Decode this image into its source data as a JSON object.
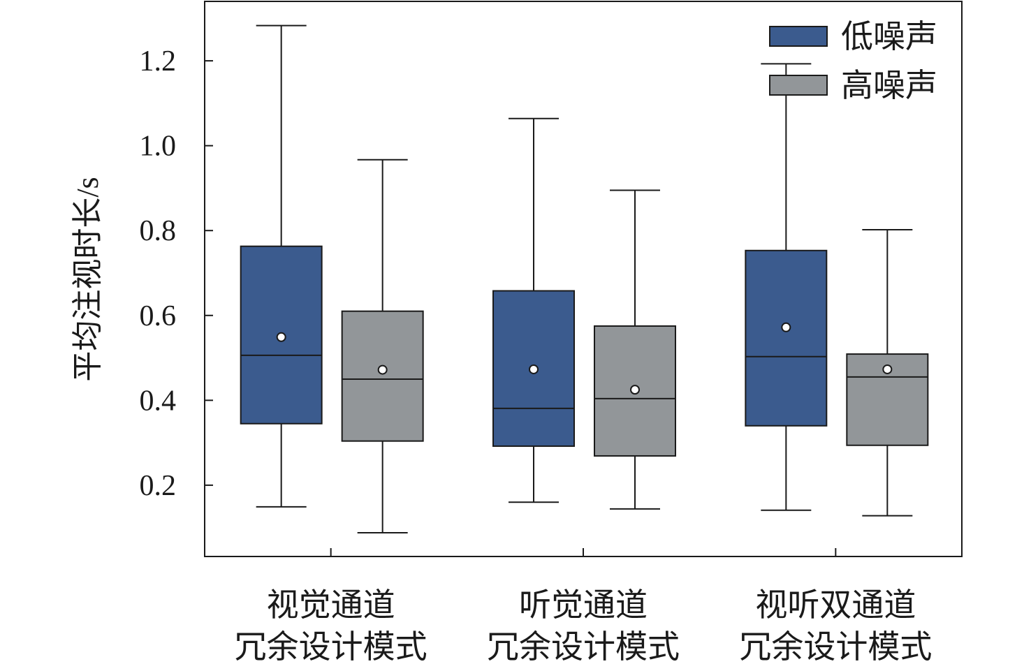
{
  "chart_data": {
    "type": "box",
    "title": "",
    "xlabel": "",
    "ylabel": "平均注视时长/s",
    "ylim": [
      0.032,
      1.34
    ],
    "yticks": [
      0.2,
      0.4,
      0.6,
      0.8,
      1.0,
      1.2
    ],
    "ytick_labels": [
      "0.2",
      "0.4",
      "0.6",
      "0.8",
      "1.0",
      "1.2"
    ],
    "grid": false,
    "legend_position": "top-right",
    "categories": [
      {
        "line1": "视觉通道",
        "line2": "冗余设计模式"
      },
      {
        "line1": "听觉通道",
        "line2": "冗余设计模式"
      },
      {
        "line1": "视听双通道",
        "line2": "冗余设计模式"
      }
    ],
    "series": [
      {
        "name": "低噪声",
        "color": "#3b5b8e",
        "boxes": [
          {
            "whisker_low": 0.149,
            "q1": 0.345,
            "median": 0.506,
            "q3": 0.763,
            "whisker_high": 1.283,
            "mean": 0.549
          },
          {
            "whisker_low": 0.16,
            "q1": 0.292,
            "median": 0.381,
            "q3": 0.658,
            "whisker_high": 1.064,
            "mean": 0.473
          },
          {
            "whisker_low": 0.141,
            "q1": 0.34,
            "median": 0.503,
            "q3": 0.753,
            "whisker_high": 1.193,
            "mean": 0.572
          }
        ]
      },
      {
        "name": "高噪声",
        "color": "#929699",
        "boxes": [
          {
            "whisker_low": 0.088,
            "q1": 0.304,
            "median": 0.45,
            "q3": 0.61,
            "whisker_high": 0.967,
            "mean": 0.472
          },
          {
            "whisker_low": 0.144,
            "q1": 0.269,
            "median": 0.404,
            "q3": 0.575,
            "whisker_high": 0.895,
            "mean": 0.425
          },
          {
            "whisker_low": 0.128,
            "q1": 0.294,
            "median": 0.455,
            "q3": 0.509,
            "whisker_high": 0.802,
            "mean": 0.473
          }
        ]
      }
    ]
  }
}
